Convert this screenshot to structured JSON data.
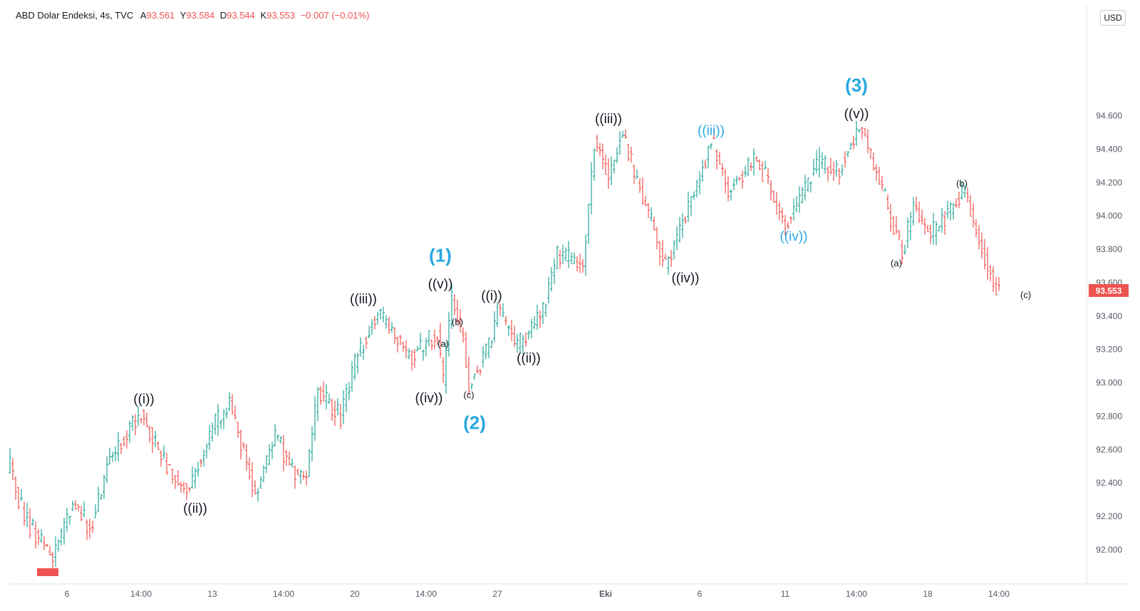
{
  "header": {
    "symbol": "ABD Dolar Endeksi, 4s, TVC",
    "open_label": "A",
    "open": "93.561",
    "high_label": "Y",
    "high": "93.584",
    "low_label": "D",
    "low": "93.544",
    "close_label": "K",
    "close": "93.553",
    "change": "−0.007 (−0.01%)"
  },
  "currency_button": "USD",
  "last_price_tag": "93.553",
  "colors": {
    "up": "#26a69a",
    "down": "#ef5350",
    "wave_blue": "#29a8e0",
    "label_dark": "#131722",
    "axis_text": "#555a66",
    "last_price_bg": "#ef5350"
  },
  "chart_data": {
    "type": "ohlc",
    "ylim": [
      91.88,
      95.2
    ],
    "y_ticks": [
      92.0,
      92.2,
      92.4,
      92.6,
      92.8,
      93.0,
      93.2,
      93.4,
      93.6,
      93.8,
      94.0,
      94.2,
      94.4,
      94.6
    ],
    "y_tick_labels": [
      "92.000",
      "92.200",
      "92.400",
      "92.600",
      "92.800",
      "93.000",
      "93.200",
      "93.400",
      "93.600",
      "93.800",
      "94.000",
      "94.200",
      "94.400",
      "94.600"
    ],
    "x_ticks": [
      {
        "label": "6",
        "bar": 20
      },
      {
        "label": "14:00",
        "bar": 46
      },
      {
        "label": "13",
        "bar": 71
      },
      {
        "label": "14:00",
        "bar": 96
      },
      {
        "label": "20",
        "bar": 121
      },
      {
        "label": "14:00",
        "bar": 146
      },
      {
        "label": "27",
        "bar": 171
      },
      {
        "label": "Eki",
        "bar": 209
      },
      {
        "label": "6",
        "bar": 242
      },
      {
        "label": "11",
        "bar": 272
      },
      {
        "label": "14:00",
        "bar": 297
      },
      {
        "label": "18",
        "bar": 322
      },
      {
        "label": "14:00",
        "bar": 347
      }
    ],
    "pivots": [
      [
        0,
        92.5
      ],
      [
        5,
        92.2
      ],
      [
        15,
        91.95
      ],
      [
        22,
        92.28
      ],
      [
        28,
        92.12
      ],
      [
        35,
        92.55
      ],
      [
        46,
        92.82
      ],
      [
        55,
        92.5
      ],
      [
        62,
        92.35
      ],
      [
        71,
        92.72
      ],
      [
        77,
        92.88
      ],
      [
        86,
        92.33
      ],
      [
        93,
        92.68
      ],
      [
        100,
        92.45
      ],
      [
        104,
        92.45
      ],
      [
        108,
        92.95
      ],
      [
        116,
        92.79
      ],
      [
        122,
        93.17
      ],
      [
        129,
        93.43
      ],
      [
        140,
        93.15
      ],
      [
        150,
        93.3
      ],
      [
        152,
        93.0
      ],
      [
        155,
        93.52
      ],
      [
        159,
        93.25
      ],
      [
        161,
        92.98
      ],
      [
        169,
        93.25
      ],
      [
        171,
        93.45
      ],
      [
        178,
        93.22
      ],
      [
        187,
        93.42
      ],
      [
        192,
        93.78
      ],
      [
        201,
        93.7
      ],
      [
        205,
        94.45
      ],
      [
        210,
        94.25
      ],
      [
        215,
        94.5
      ],
      [
        219,
        94.25
      ],
      [
        230,
        93.7
      ],
      [
        238,
        94.05
      ],
      [
        246,
        94.45
      ],
      [
        252,
        94.15
      ],
      [
        262,
        94.35
      ],
      [
        272,
        93.95
      ],
      [
        284,
        94.32
      ],
      [
        290,
        94.25
      ],
      [
        298,
        94.55
      ],
      [
        303,
        94.3
      ],
      [
        313,
        93.78
      ],
      [
        317,
        94.05
      ],
      [
        323,
        93.88
      ],
      [
        335,
        94.15
      ],
      [
        339,
        93.9
      ],
      [
        347,
        93.52
      ]
    ],
    "wave_labels": [
      {
        "text": "((i))",
        "bar": 47,
        "price": 92.85,
        "pos": "above",
        "style": "dark"
      },
      {
        "text": "((ii))",
        "bar": 65,
        "price": 92.32,
        "pos": "below",
        "style": "dark"
      },
      {
        "text": "((iii))",
        "bar": 124,
        "price": 93.45,
        "pos": "above",
        "style": "dark"
      },
      {
        "text": "((iv))",
        "bar": 147,
        "price": 92.98,
        "pos": "below",
        "style": "dark"
      },
      {
        "text": "((v))",
        "bar": 151,
        "price": 93.54,
        "pos": "above",
        "style": "dark"
      },
      {
        "text": "(1)",
        "bar": 151,
        "price": 93.7,
        "pos": "above",
        "style": "blue_big"
      },
      {
        "text": "(a)",
        "bar": 152,
        "price": 93.19,
        "pos": "above",
        "style": "small"
      },
      {
        "text": "(b)",
        "bar": 157,
        "price": 93.32,
        "pos": "above",
        "style": "small"
      },
      {
        "text": "(c)",
        "bar": 161,
        "price": 92.98,
        "pos": "below",
        "style": "small"
      },
      {
        "text": "(2)",
        "bar": 163,
        "price": 92.85,
        "pos": "below",
        "style": "blue_big"
      },
      {
        "text": "((i))",
        "bar": 169,
        "price": 93.47,
        "pos": "above",
        "style": "dark"
      },
      {
        "text": "((ii))",
        "bar": 182,
        "price": 93.22,
        "pos": "below",
        "style": "dark"
      },
      {
        "text": "((iii))",
        "bar": 210,
        "price": 94.53,
        "pos": "above",
        "style": "dark"
      },
      {
        "text": "((iv))",
        "bar": 237,
        "price": 93.7,
        "pos": "below",
        "style": "dark"
      },
      {
        "text": "((iii))",
        "bar": 246,
        "price": 94.46,
        "pos": "above",
        "style": "blue"
      },
      {
        "text": "((iv))",
        "bar": 275,
        "price": 93.95,
        "pos": "below",
        "style": "blue"
      },
      {
        "text": "((v))",
        "bar": 297,
        "price": 94.56,
        "pos": "above",
        "style": "dark"
      },
      {
        "text": "(3)",
        "bar": 297,
        "price": 94.72,
        "pos": "above",
        "style": "blue_big"
      },
      {
        "text": "(a)",
        "bar": 311,
        "price": 93.77,
        "pos": "below",
        "style": "small"
      },
      {
        "text": "(b)",
        "bar": 334,
        "price": 94.15,
        "pos": "above",
        "style": "small"
      },
      {
        "text": "(c)",
        "bar": 351,
        "price": 93.53,
        "pos": "right",
        "style": "small"
      }
    ],
    "marker_bar": 13,
    "last_price": 93.553
  }
}
